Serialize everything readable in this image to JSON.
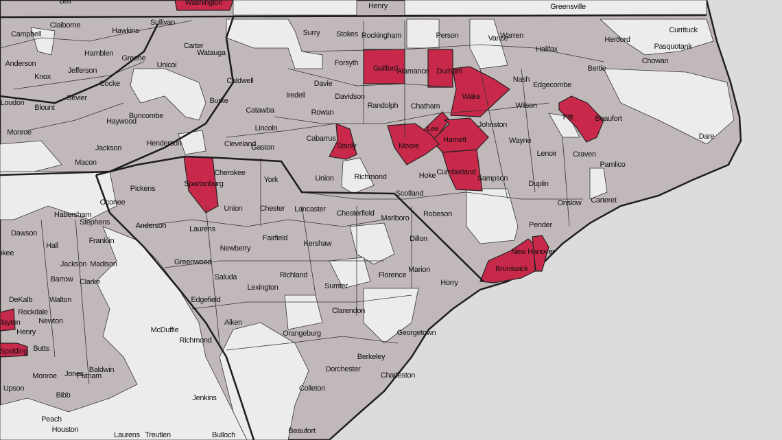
{
  "colors": {
    "ocean": "#dcdcdc",
    "land_default": "#c1b8b9",
    "land_no_data": "#ececec",
    "highlight": "#c8284a",
    "border": "#1e1e1e"
  },
  "labels": [
    {
      "name": "Washington",
      "highlighted": true
    },
    {
      "name": "Henry",
      "highlighted": false
    },
    {
      "name": "Greensville",
      "highlighted": false
    },
    {
      "name": "Bell",
      "highlighted": false
    },
    {
      "name": "Campbell",
      "highlighted": false
    },
    {
      "name": "Claiborne",
      "highlighted": false
    },
    {
      "name": "Sullivan",
      "highlighted": false
    },
    {
      "name": "Hawkins",
      "highlighted": false
    },
    {
      "name": "Carter",
      "highlighted": false
    },
    {
      "name": "Watauga",
      "highlighted": false
    },
    {
      "name": "Hamblen",
      "highlighted": false
    },
    {
      "name": "Greene",
      "highlighted": false
    },
    {
      "name": "Unicoi",
      "highlighted": false
    },
    {
      "name": "Anderson",
      "highlighted": false
    },
    {
      "name": "Jefferson",
      "highlighted": false
    },
    {
      "name": "Knox",
      "highlighted": false
    },
    {
      "name": "Cocke",
      "highlighted": false
    },
    {
      "name": "Sevier",
      "highlighted": false
    },
    {
      "name": "Loudon",
      "highlighted": false
    },
    {
      "name": "Blount",
      "highlighted": false
    },
    {
      "name": "Monroe",
      "highlighted": false
    },
    {
      "name": "Haywood",
      "highlighted": false
    },
    {
      "name": "Buncombe",
      "highlighted": false
    },
    {
      "name": "Henderson",
      "highlighted": false
    },
    {
      "name": "Jackson",
      "highlighted": false
    },
    {
      "name": "Macon",
      "highlighted": false
    },
    {
      "name": "Surry",
      "highlighted": false
    },
    {
      "name": "Stokes",
      "highlighted": false
    },
    {
      "name": "Rockingham",
      "highlighted": false
    },
    {
      "name": "Person",
      "highlighted": false
    },
    {
      "name": "Vance",
      "highlighted": false
    },
    {
      "name": "Warren",
      "highlighted": false
    },
    {
      "name": "Halifax",
      "highlighted": false
    },
    {
      "name": "Hertford",
      "highlighted": false
    },
    {
      "name": "Currituck",
      "highlighted": false
    },
    {
      "name": "Pasquotank",
      "highlighted": false
    },
    {
      "name": "Chowan",
      "highlighted": false
    },
    {
      "name": "Bertie",
      "highlighted": false
    },
    {
      "name": "Caldwell",
      "highlighted": false
    },
    {
      "name": "Burke",
      "highlighted": false
    },
    {
      "name": "Catawba",
      "highlighted": false
    },
    {
      "name": "Lincoln",
      "highlighted": false
    },
    {
      "name": "Cleveland",
      "highlighted": false
    },
    {
      "name": "Gaston",
      "highlighted": false
    },
    {
      "name": "Iredell",
      "highlighted": false
    },
    {
      "name": "Davie",
      "highlighted": false
    },
    {
      "name": "Forsyth",
      "highlighted": false
    },
    {
      "name": "Davidson",
      "highlighted": false
    },
    {
      "name": "Rowan",
      "highlighted": false
    },
    {
      "name": "Cabarrus",
      "highlighted": false
    },
    {
      "name": "Stanly",
      "highlighted": true
    },
    {
      "name": "Guilford",
      "highlighted": true
    },
    {
      "name": "Alamance",
      "highlighted": false
    },
    {
      "name": "Durham",
      "highlighted": false
    },
    {
      "name": "Randolph",
      "highlighted": false
    },
    {
      "name": "Chatham",
      "highlighted": false
    },
    {
      "name": "Wake",
      "highlighted": true
    },
    {
      "name": "Nash",
      "highlighted": false
    },
    {
      "name": "Edgecombe",
      "highlighted": false
    },
    {
      "name": "Wilson",
      "highlighted": false
    },
    {
      "name": "Pitt",
      "highlighted": true
    },
    {
      "name": "Beaufort",
      "highlighted": false
    },
    {
      "name": "Johnston",
      "highlighted": false
    },
    {
      "name": "Lee",
      "highlighted": true
    },
    {
      "name": "Moore",
      "highlighted": true
    },
    {
      "name": "Harnett",
      "highlighted": true
    },
    {
      "name": "Wayne",
      "highlighted": false
    },
    {
      "name": "Lenoir",
      "highlighted": false
    },
    {
      "name": "Craven",
      "highlighted": false
    },
    {
      "name": "Pamlico",
      "highlighted": false
    },
    {
      "name": "Dare",
      "highlighted": false
    },
    {
      "name": "Cumberland",
      "highlighted": true
    },
    {
      "name": "Hoke",
      "highlighted": false
    },
    {
      "name": "Sampson",
      "highlighted": false
    },
    {
      "name": "Duplin",
      "highlighted": false
    },
    {
      "name": "Onslow",
      "highlighted": false
    },
    {
      "name": "Carteret",
      "highlighted": false
    },
    {
      "name": "Scotland",
      "highlighted": false
    },
    {
      "name": "Robeson",
      "highlighted": false
    },
    {
      "name": "Richmond",
      "highlighted": false
    },
    {
      "name": "Union",
      "highlighted": false
    },
    {
      "name": "Spartanburg",
      "highlighted": true
    },
    {
      "name": "Cherokee",
      "highlighted": false
    },
    {
      "name": "York",
      "highlighted": false
    },
    {
      "name": "Union",
      "highlighted": false
    },
    {
      "name": "Pickens",
      "highlighted": false
    },
    {
      "name": "Oconee",
      "highlighted": false
    },
    {
      "name": "Anderson",
      "highlighted": false
    },
    {
      "name": "Chester",
      "highlighted": false
    },
    {
      "name": "Lancaster",
      "highlighted": false
    },
    {
      "name": "Chesterfield",
      "highlighted": false
    },
    {
      "name": "Marlboro",
      "highlighted": false
    },
    {
      "name": "Dillon",
      "highlighted": false
    },
    {
      "name": "Laurens",
      "highlighted": false
    },
    {
      "name": "Newberry",
      "highlighted": false
    },
    {
      "name": "Fairfield",
      "highlighted": false
    },
    {
      "name": "Kershaw",
      "highlighted": false
    },
    {
      "name": "Greenwood",
      "highlighted": false
    },
    {
      "name": "Saluda",
      "highlighted": false
    },
    {
      "name": "Richland",
      "highlighted": false
    },
    {
      "name": "Lexington",
      "highlighted": false
    },
    {
      "name": "Sumter",
      "highlighted": false
    },
    {
      "name": "Florence",
      "highlighted": false
    },
    {
      "name": "Marion",
      "highlighted": false
    },
    {
      "name": "Horry",
      "highlighted": false
    },
    {
      "name": "Pender",
      "highlighted": false
    },
    {
      "name": "New Hanover",
      "highlighted": true
    },
    {
      "name": "Brunswick",
      "highlighted": true
    },
    {
      "name": "Edgefield",
      "highlighted": false
    },
    {
      "name": "Aiken",
      "highlighted": false
    },
    {
      "name": "Clarendon",
      "highlighted": false
    },
    {
      "name": "Orangeburg",
      "highlighted": false
    },
    {
      "name": "Georgetown",
      "highlighted": false
    },
    {
      "name": "Berkeley",
      "highlighted": false
    },
    {
      "name": "Dorchester",
      "highlighted": false
    },
    {
      "name": "Charleston",
      "highlighted": false
    },
    {
      "name": "Colleton",
      "highlighted": false
    },
    {
      "name": "Beaufort",
      "highlighted": false
    },
    {
      "name": "Jenkins",
      "highlighted": false
    },
    {
      "name": "Bulloch",
      "highlighted": false
    },
    {
      "name": "McDuffie",
      "highlighted": false
    },
    {
      "name": "Richmond",
      "highlighted": false
    },
    {
      "name": "Habersham",
      "highlighted": false
    },
    {
      "name": "Stephens",
      "highlighted": false
    },
    {
      "name": "Dawson",
      "highlighted": false
    },
    {
      "name": "Hall",
      "highlighted": false
    },
    {
      "name": "Franklin",
      "highlighted": false
    },
    {
      "name": "Jackson",
      "highlighted": false
    },
    {
      "name": "Madison",
      "highlighted": false
    },
    {
      "name": "Barrow",
      "highlighted": false
    },
    {
      "name": "Clarke",
      "highlighted": false
    },
    {
      "name": "DeKalb",
      "highlighted": false
    },
    {
      "name": "Walton",
      "highlighted": false
    },
    {
      "name": "Rockdale",
      "highlighted": false
    },
    {
      "name": "Newton",
      "highlighted": false
    },
    {
      "name": "Clayton",
      "highlighted": true
    },
    {
      "name": "Henry",
      "highlighted": false
    },
    {
      "name": "Butts",
      "highlighted": false
    },
    {
      "name": "Spalding",
      "highlighted": true
    },
    {
      "name": "Putnam",
      "highlighted": false
    },
    {
      "name": "Monroe",
      "highlighted": false
    },
    {
      "name": "Jones",
      "highlighted": false
    },
    {
      "name": "Baldwin",
      "highlighted": false
    },
    {
      "name": "Upson",
      "highlighted": false
    },
    {
      "name": "Bibb",
      "highlighted": false
    },
    {
      "name": "Peach",
      "highlighted": false
    },
    {
      "name": "Houston",
      "highlighted": false
    },
    {
      "name": "Laurens",
      "highlighted": false
    },
    {
      "name": "Treutlen",
      "highlighted": false
    },
    {
      "name": "Cokee",
      "highlighted": false
    }
  ]
}
